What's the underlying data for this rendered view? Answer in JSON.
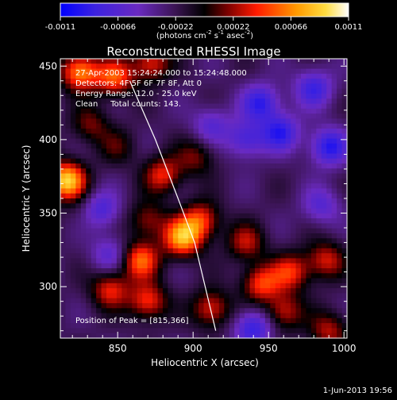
{
  "chart_data": {
    "type": "heatmap",
    "title": "Reconstructed RHESSI Image",
    "xlabel": "Heliocentric X (arcsec)",
    "ylabel": "Heliocentric Y (arcsec)",
    "xlim": [
      812,
      1002
    ],
    "ylim": [
      265,
      455
    ],
    "x_ticks": [
      850,
      900,
      950,
      1000
    ],
    "y_ticks": [
      300,
      350,
      400,
      450
    ],
    "colorbar": {
      "min": -0.0011,
      "max": 0.0011,
      "tick_values": [
        -0.0011,
        -0.00066,
        -0.00022,
        0.00022,
        0.00066,
        0.0011
      ],
      "tick_labels": [
        "-0.0011",
        "-0.00066",
        "-0.00022",
        "0.00022",
        "0.00066",
        "0.0011"
      ],
      "unit_main": "(photons cm",
      "unit_sup1": "-2",
      "unit_mid": " s",
      "unit_sup2": "-1",
      "unit_end": " asec",
      "unit_sup3": "-2",
      "unit_close": ")"
    },
    "info_lines": [
      "27-Apr-2003 15:24:24.000 to 15:24:48.000",
      "Detectors: 4F 5F 6F 7F 8F, Att 0",
      "Energy Range: 12.0 - 25.0 keV",
      "Clean     Total counts: 143."
    ],
    "peak_label": "Position of Peak = [815,366]",
    "peak_position": [
      815,
      366
    ],
    "limb_curve": [
      [
        858,
        440
      ],
      [
        875,
        400
      ],
      [
        890,
        360
      ],
      [
        901,
        330
      ],
      [
        915,
        270
      ]
    ],
    "hotspots": [
      {
        "x": 816,
        "y": 372,
        "amp": 1.0
      },
      {
        "x": 825,
        "y": 446,
        "amp": 0.8
      },
      {
        "x": 848,
        "y": 442,
        "amp": 0.65
      },
      {
        "x": 872,
        "y": 452,
        "amp": 0.55
      },
      {
        "x": 893,
        "y": 333,
        "amp": 0.85
      },
      {
        "x": 905,
        "y": 345,
        "amp": 0.6
      },
      {
        "x": 865,
        "y": 318,
        "amp": 0.7
      },
      {
        "x": 845,
        "y": 298,
        "amp": 0.55
      },
      {
        "x": 870,
        "y": 290,
        "amp": 0.6
      },
      {
        "x": 912,
        "y": 285,
        "amp": 0.55
      },
      {
        "x": 945,
        "y": 302,
        "amp": 0.6
      },
      {
        "x": 965,
        "y": 310,
        "amp": 0.55
      },
      {
        "x": 988,
        "y": 318,
        "amp": 0.5
      },
      {
        "x": 935,
        "y": 330,
        "amp": 0.45
      },
      {
        "x": 960,
        "y": 283,
        "amp": 0.5
      },
      {
        "x": 880,
        "y": 376,
        "amp": 0.55
      },
      {
        "x": 870,
        "y": 345,
        "amp": 0.4
      },
      {
        "x": 902,
        "y": 388,
        "amp": 0.35
      },
      {
        "x": 990,
        "y": 270,
        "amp": 0.45
      },
      {
        "x": 832,
        "y": 410,
        "amp": 0.35
      },
      {
        "x": 850,
        "y": 395,
        "amp": 0.25
      },
      {
        "x": 830,
        "y": 350,
        "amp": 0.15
      },
      {
        "x": 958,
        "y": 405,
        "amp": -0.55
      },
      {
        "x": 945,
        "y": 425,
        "amp": -0.55
      },
      {
        "x": 990,
        "y": 395,
        "amp": -0.6
      },
      {
        "x": 935,
        "y": 400,
        "amp": -0.45
      },
      {
        "x": 980,
        "y": 435,
        "amp": -0.5
      },
      {
        "x": 912,
        "y": 410,
        "amp": -0.35
      },
      {
        "x": 940,
        "y": 272,
        "amp": -0.55
      },
      {
        "x": 838,
        "y": 352,
        "amp": -0.5
      },
      {
        "x": 845,
        "y": 322,
        "amp": -0.35
      },
      {
        "x": 985,
        "y": 355,
        "amp": -0.35
      }
    ],
    "footer_date": "1-Jun-2013 19:56"
  }
}
